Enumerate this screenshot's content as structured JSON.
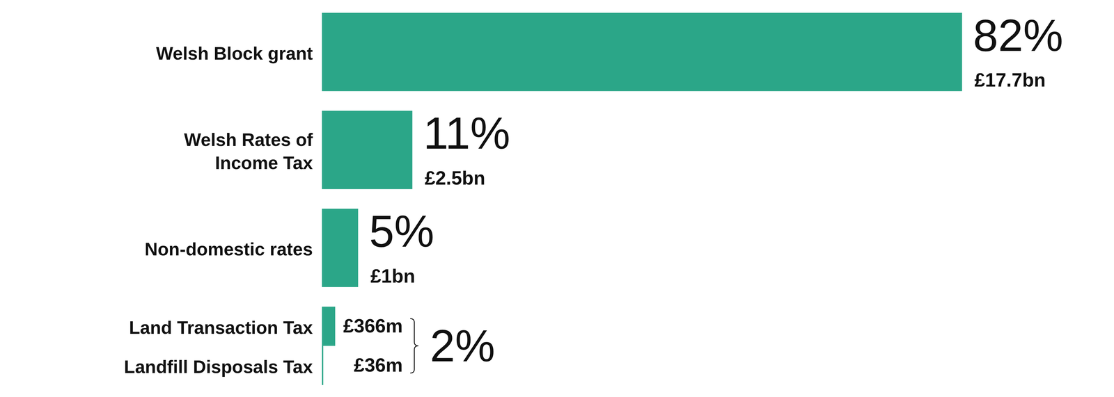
{
  "chart_data": {
    "type": "bar",
    "orientation": "horizontal",
    "categories": [
      "Welsh Block grant",
      "Welsh Rates of\nIncome Tax",
      "Non-domestic rates",
      "Land Transaction Tax",
      "Landfill Disposals Tax"
    ],
    "values": [
      17.7,
      2.5,
      1,
      0.366,
      0.036
    ],
    "value_labels": [
      "£17.7bn",
      "£2.5bn",
      "£1bn",
      "£366m",
      "£36m"
    ],
    "shares": [
      82,
      11,
      5,
      null,
      null
    ],
    "share_labels": [
      "82%",
      "11%",
      "5%",
      null,
      null
    ],
    "groups": [
      {
        "categories": [
          "Land Transaction Tax",
          "Landfill Disposals Tax"
        ],
        "share": 2,
        "share_label": "2%"
      }
    ],
    "color": "#2ba688",
    "data_labels": true,
    "tick_labels": false
  }
}
